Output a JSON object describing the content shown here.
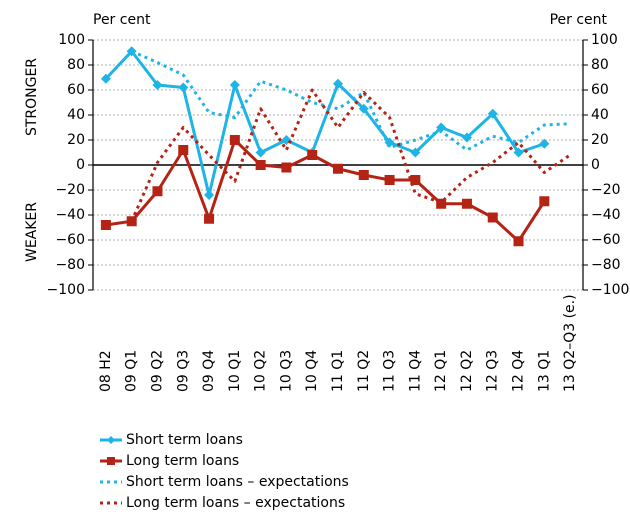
{
  "chart_data": {
    "type": "line",
    "y_label_left": "Per cent",
    "y_label_right": "Per cent",
    "upper_label": "STRONGER",
    "lower_label": "WEAKER",
    "categories": [
      "08 H2",
      "09 Q1",
      "09 Q2",
      "09 Q3",
      "09 Q4",
      "10 Q1",
      "10 Q2",
      "10 Q3",
      "10 Q4",
      "11 Q1",
      "11 Q2",
      "11 Q3",
      "11 Q4",
      "12 Q1",
      "12 Q2",
      "12 Q3",
      "12 Q4",
      "13 Q1",
      "13 Q2–Q3 (e.)"
    ],
    "series": [
      {
        "name": "Short term loans",
        "color": "#1eb4e6",
        "style": "solid",
        "marker": "diamond",
        "values": [
          69,
          91,
          64,
          62,
          -24,
          64,
          10,
          20,
          10,
          65,
          45,
          18,
          10,
          30,
          22,
          41,
          10,
          17,
          null
        ]
      },
      {
        "name": "Long term loans",
        "color": "#b42314",
        "style": "solid",
        "marker": "square",
        "values": [
          -48,
          -45,
          -21,
          12,
          -43,
          20,
          0,
          -2,
          8,
          -3,
          -8,
          -12,
          -12,
          -31,
          -31,
          -42,
          -61,
          -29,
          null
        ]
      },
      {
        "name": "Short term loans – expectations",
        "color": "#1eb4e6",
        "style": "dotted",
        "marker": null,
        "values": [
          null,
          91,
          82,
          72,
          42,
          38,
          67,
          60,
          50,
          45,
          58,
          14,
          20,
          27,
          12,
          23,
          18,
          32,
          33
        ]
      },
      {
        "name": "Long term loans – expectations",
        "color": "#b42314",
        "style": "dotted",
        "marker": null,
        "values": [
          null,
          -45,
          2,
          30,
          8,
          -13,
          45,
          12,
          60,
          30,
          58,
          38,
          -23,
          -30,
          -10,
          2,
          18,
          -6,
          8
        ]
      }
    ],
    "ylim": [
      -100,
      100
    ],
    "yticks": [
      {
        "value": -100,
        "label": "−100"
      },
      {
        "value": -80,
        "label": "−80"
      },
      {
        "value": -60,
        "label": "−60"
      },
      {
        "value": -40,
        "label": "−40"
      },
      {
        "value": -20,
        "label": "−20"
      },
      0,
      20,
      40,
      60,
      80,
      100
    ],
    "y2lim": [
      -100,
      100
    ],
    "y2ticks": [
      {
        "value": -100,
        "label": "−100"
      },
      {
        "value": -80,
        "label": "−80"
      },
      {
        "value": -60,
        "label": "−60"
      },
      {
        "value": -40,
        "label": "−40"
      },
      {
        "value": -20,
        "label": "−20"
      },
      0,
      20,
      40,
      60,
      80,
      100
    ],
    "grid": true
  }
}
